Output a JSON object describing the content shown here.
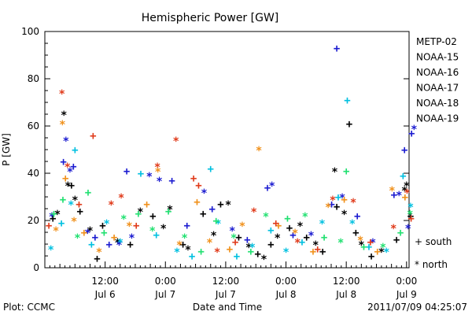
{
  "footer": {
    "plot_credit": "Plot: CCMC",
    "timestamp": "2011/07/09 04:25:07"
  },
  "chart_data": {
    "type": "scatter",
    "title": "Hemispheric Power [GW]",
    "xlabel": "Date and Time",
    "ylabel": "P [GW]",
    "ylim": [
      0,
      100
    ],
    "yticks": [
      0,
      20,
      40,
      60,
      80,
      100
    ],
    "xlim": [
      0,
      72.5
    ],
    "xticks": [
      {
        "x": 12,
        "top": "12:00",
        "bottom": "Jul 6"
      },
      {
        "x": 24,
        "top": "0:00",
        "bottom": "Jul 7"
      },
      {
        "x": 36,
        "top": "12:00",
        "bottom": "Jul 7"
      },
      {
        "x": 48,
        "top": "0:00",
        "bottom": "Jul 8"
      },
      {
        "x": 60,
        "top": "12:00",
        "bottom": "Jul 8"
      },
      {
        "x": 72,
        "top": "0:00",
        "bottom": "Jul 9"
      }
    ],
    "marker_legend": [
      {
        "symbol": "+",
        "label": "south"
      },
      {
        "symbol": "*",
        "label": "north"
      }
    ],
    "series": [
      {
        "name": "METP-02",
        "color": "#000000",
        "points": [
          {
            "x": 1.6,
            "y": 21,
            "m": "+"
          },
          {
            "x": 2.5,
            "y": 24,
            "m": "*"
          },
          {
            "x": 3.8,
            "y": 66,
            "m": "*"
          },
          {
            "x": 4.6,
            "y": 36,
            "m": "*"
          },
          {
            "x": 5.3,
            "y": 35,
            "m": "+"
          },
          {
            "x": 6.0,
            "y": 30,
            "m": "*"
          },
          {
            "x": 7.0,
            "y": 24,
            "m": "+"
          },
          {
            "x": 9.0,
            "y": 17,
            "m": "*"
          },
          {
            "x": 10.4,
            "y": 4,
            "m": "+"
          },
          {
            "x": 11.5,
            "y": 18,
            "m": "+"
          },
          {
            "x": 14.5,
            "y": 12,
            "m": "*"
          },
          {
            "x": 17.0,
            "y": 10,
            "m": "+"
          },
          {
            "x": 19.0,
            "y": 25,
            "m": "*"
          },
          {
            "x": 21.5,
            "y": 22,
            "m": "+"
          },
          {
            "x": 23.6,
            "y": 18,
            "m": "*"
          },
          {
            "x": 24.9,
            "y": 26,
            "m": "*"
          },
          {
            "x": 27.5,
            "y": 10,
            "m": "+"
          },
          {
            "x": 28.5,
            "y": 9,
            "m": "*"
          },
          {
            "x": 31.5,
            "y": 23,
            "m": "+"
          },
          {
            "x": 33.6,
            "y": 15,
            "m": "*"
          },
          {
            "x": 35.0,
            "y": 27,
            "m": "+"
          },
          {
            "x": 36.5,
            "y": 28,
            "m": "*"
          },
          {
            "x": 38.6,
            "y": 13,
            "m": "+"
          },
          {
            "x": 40.6,
            "y": 10,
            "m": "*"
          },
          {
            "x": 42.4,
            "y": 6,
            "m": "+"
          },
          {
            "x": 43.6,
            "y": 5,
            "m": "*"
          },
          {
            "x": 45.0,
            "y": 10,
            "m": "+"
          },
          {
            "x": 46.3,
            "y": 14,
            "m": "*"
          },
          {
            "x": 48.7,
            "y": 17,
            "m": "+"
          },
          {
            "x": 50.8,
            "y": 19,
            "m": "*"
          },
          {
            "x": 52.1,
            "y": 13,
            "m": "+"
          },
          {
            "x": 53.9,
            "y": 11,
            "m": "*"
          },
          {
            "x": 55.3,
            "y": 7,
            "m": "+"
          },
          {
            "x": 57.7,
            "y": 42,
            "m": "*"
          },
          {
            "x": 58.1,
            "y": 26,
            "m": "+"
          },
          {
            "x": 59.6,
            "y": 24,
            "m": "*"
          },
          {
            "x": 60.6,
            "y": 61,
            "m": "+"
          },
          {
            "x": 61.9,
            "y": 15,
            "m": "+"
          },
          {
            "x": 63.0,
            "y": 11,
            "m": "*"
          },
          {
            "x": 65.0,
            "y": 5,
            "m": "+"
          },
          {
            "x": 67.0,
            "y": 8,
            "m": "*"
          },
          {
            "x": 70.0,
            "y": 12,
            "m": "+"
          },
          {
            "x": 71.6,
            "y": 34,
            "m": "*"
          },
          {
            "x": 72.0,
            "y": 36,
            "m": "*"
          },
          {
            "x": 72.8,
            "y": 22,
            "m": "+"
          }
        ]
      },
      {
        "name": "NOAA-15",
        "color": "#1a1ad0",
        "points": [
          {
            "x": 1.4,
            "y": 23,
            "m": "*"
          },
          {
            "x": 3.7,
            "y": 45,
            "m": "+"
          },
          {
            "x": 4.2,
            "y": 55,
            "m": "*"
          },
          {
            "x": 5.0,
            "y": 42,
            "m": "*"
          },
          {
            "x": 5.7,
            "y": 43,
            "m": "+"
          },
          {
            "x": 8.5,
            "y": 16,
            "m": "*"
          },
          {
            "x": 10.0,
            "y": 13,
            "m": "+"
          },
          {
            "x": 12.8,
            "y": 10,
            "m": "+"
          },
          {
            "x": 14.8,
            "y": 11,
            "m": "*"
          },
          {
            "x": 16.3,
            "y": 41,
            "m": "+"
          },
          {
            "x": 17.3,
            "y": 14,
            "m": "*"
          },
          {
            "x": 20.8,
            "y": 40,
            "m": "*"
          },
          {
            "x": 22.8,
            "y": 38,
            "m": "*"
          },
          {
            "x": 25.3,
            "y": 37,
            "m": "+"
          },
          {
            "x": 28.3,
            "y": 18,
            "m": "+"
          },
          {
            "x": 31.7,
            "y": 33,
            "m": "*"
          },
          {
            "x": 33.3,
            "y": 25,
            "m": "+"
          },
          {
            "x": 37.3,
            "y": 17,
            "m": "*"
          },
          {
            "x": 40.3,
            "y": 12,
            "m": "+"
          },
          {
            "x": 44.3,
            "y": 34,
            "m": "+"
          },
          {
            "x": 45.2,
            "y": 36,
            "m": "*"
          },
          {
            "x": 49.4,
            "y": 14,
            "m": "+"
          },
          {
            "x": 53.0,
            "y": 15,
            "m": "*"
          },
          {
            "x": 57.1,
            "y": 27,
            "m": "+"
          },
          {
            "x": 58.1,
            "y": 93,
            "m": "+"
          },
          {
            "x": 59.2,
            "y": 31,
            "m": "*"
          },
          {
            "x": 62.2,
            "y": 22,
            "m": "+"
          },
          {
            "x": 65.3,
            "y": 12,
            "m": "*"
          },
          {
            "x": 69.5,
            "y": 31,
            "m": "+"
          },
          {
            "x": 70.5,
            "y": 32,
            "m": "*"
          },
          {
            "x": 71.6,
            "y": 50,
            "m": "+"
          },
          {
            "x": 72.3,
            "y": 18,
            "m": "*"
          },
          {
            "x": 73.0,
            "y": 57,
            "m": "+"
          },
          {
            "x": 73.5,
            "y": 60,
            "m": "*"
          }
        ]
      },
      {
        "name": "NOAA-16",
        "color": "#00c0e0",
        "points": [
          {
            "x": 1.2,
            "y": 9,
            "m": "*"
          },
          {
            "x": 3.3,
            "y": 19,
            "m": "+"
          },
          {
            "x": 5.2,
            "y": 28,
            "m": "*"
          },
          {
            "x": 6.0,
            "y": 50,
            "m": "+"
          },
          {
            "x": 9.3,
            "y": 10,
            "m": "+"
          },
          {
            "x": 12.3,
            "y": 20,
            "m": "*"
          },
          {
            "x": 15.0,
            "y": 12,
            "m": "*"
          },
          {
            "x": 19.1,
            "y": 40,
            "m": "+"
          },
          {
            "x": 22.2,
            "y": 14,
            "m": "+"
          },
          {
            "x": 26.3,
            "y": 8,
            "m": "*"
          },
          {
            "x": 29.3,
            "y": 5,
            "m": "+"
          },
          {
            "x": 33.0,
            "y": 42,
            "m": "+"
          },
          {
            "x": 34.5,
            "y": 20,
            "m": "*"
          },
          {
            "x": 38.2,
            "y": 5,
            "m": "+"
          },
          {
            "x": 41.3,
            "y": 10,
            "m": "*"
          },
          {
            "x": 45.0,
            "y": 16,
            "m": "+"
          },
          {
            "x": 48.0,
            "y": 8,
            "m": "*"
          },
          {
            "x": 51.2,
            "y": 11,
            "m": "+"
          },
          {
            "x": 55.2,
            "y": 20,
            "m": "*"
          },
          {
            "x": 58.4,
            "y": 30,
            "m": "+"
          },
          {
            "x": 60.2,
            "y": 71,
            "m": "+"
          },
          {
            "x": 61.2,
            "y": 20,
            "m": "*"
          },
          {
            "x": 64.5,
            "y": 9,
            "m": "+"
          },
          {
            "x": 68.0,
            "y": 8,
            "m": "*"
          },
          {
            "x": 71.3,
            "y": 39,
            "m": "+"
          },
          {
            "x": 72.8,
            "y": 27,
            "m": "*"
          }
        ]
      },
      {
        "name": "NOAA-17",
        "color": "#20e070",
        "points": [
          {
            "x": 1.8,
            "y": 23,
            "m": "+"
          },
          {
            "x": 3.6,
            "y": 29,
            "m": "+"
          },
          {
            "x": 6.5,
            "y": 14,
            "m": "*"
          },
          {
            "x": 8.6,
            "y": 32,
            "m": "+"
          },
          {
            "x": 11.8,
            "y": 15,
            "m": "+"
          },
          {
            "x": 15.7,
            "y": 22,
            "m": "*"
          },
          {
            "x": 18.6,
            "y": 23,
            "m": "+"
          },
          {
            "x": 21.4,
            "y": 17,
            "m": "*"
          },
          {
            "x": 24.6,
            "y": 24,
            "m": "+"
          },
          {
            "x": 27.8,
            "y": 14,
            "m": "*"
          },
          {
            "x": 31.1,
            "y": 7,
            "m": "+"
          },
          {
            "x": 34.1,
            "y": 20,
            "m": "+"
          },
          {
            "x": 37.6,
            "y": 14,
            "m": "*"
          },
          {
            "x": 41.0,
            "y": 7,
            "m": "+"
          },
          {
            "x": 44.0,
            "y": 23,
            "m": "*"
          },
          {
            "x": 48.3,
            "y": 21,
            "m": "+"
          },
          {
            "x": 51.8,
            "y": 23,
            "m": "*"
          },
          {
            "x": 55.6,
            "y": 13,
            "m": "+"
          },
          {
            "x": 58.9,
            "y": 12,
            "m": "*"
          },
          {
            "x": 60.0,
            "y": 41,
            "m": "+"
          },
          {
            "x": 63.5,
            "y": 9,
            "m": "+"
          },
          {
            "x": 67.3,
            "y": 10,
            "m": "*"
          },
          {
            "x": 70.8,
            "y": 15,
            "m": "+"
          },
          {
            "x": 72.7,
            "y": 24,
            "m": "*"
          }
        ]
      },
      {
        "name": "NOAA-18",
        "color": "#f0901a",
        "points": [
          {
            "x": 2.2,
            "y": 17,
            "m": "*"
          },
          {
            "x": 3.5,
            "y": 62,
            "m": "*"
          },
          {
            "x": 4.1,
            "y": 38,
            "m": "+"
          },
          {
            "x": 5.8,
            "y": 21,
            "m": "*"
          },
          {
            "x": 7.8,
            "y": 15,
            "m": "+"
          },
          {
            "x": 10.8,
            "y": 8,
            "m": "*"
          },
          {
            "x": 13.8,
            "y": 13,
            "m": "+"
          },
          {
            "x": 16.8,
            "y": 19,
            "m": "*"
          },
          {
            "x": 20.3,
            "y": 27,
            "m": "+"
          },
          {
            "x": 22.5,
            "y": 42,
            "m": "*"
          },
          {
            "x": 26.8,
            "y": 11,
            "m": "*"
          },
          {
            "x": 30.3,
            "y": 28,
            "m": "+"
          },
          {
            "x": 32.8,
            "y": 12,
            "m": "*"
          },
          {
            "x": 36.8,
            "y": 8,
            "m": "+"
          },
          {
            "x": 39.3,
            "y": 19,
            "m": "*"
          },
          {
            "x": 42.6,
            "y": 51,
            "m": "*"
          },
          {
            "x": 46.5,
            "y": 18,
            "m": "+"
          },
          {
            "x": 49.8,
            "y": 16,
            "m": "*"
          },
          {
            "x": 53.4,
            "y": 7,
            "m": "+"
          },
          {
            "x": 56.4,
            "y": 27,
            "m": "*"
          },
          {
            "x": 59.6,
            "y": 29,
            "m": "+"
          },
          {
            "x": 62.8,
            "y": 13,
            "m": "*"
          },
          {
            "x": 66.2,
            "y": 7,
            "m": "+"
          },
          {
            "x": 69.1,
            "y": 34,
            "m": "*"
          },
          {
            "x": 71.7,
            "y": 30,
            "m": "+"
          }
        ]
      },
      {
        "name": "NOAA-19",
        "color": "#e03a1a",
        "points": [
          {
            "x": 0.8,
            "y": 18,
            "m": "+"
          },
          {
            "x": 3.4,
            "y": 75,
            "m": "*"
          },
          {
            "x": 4.5,
            "y": 44,
            "m": "*"
          },
          {
            "x": 6.8,
            "y": 27,
            "m": "+"
          },
          {
            "x": 9.6,
            "y": 56,
            "m": "+"
          },
          {
            "x": 13.2,
            "y": 28,
            "m": "*"
          },
          {
            "x": 15.2,
            "y": 31,
            "m": "*"
          },
          {
            "x": 18.2,
            "y": 18,
            "m": "+"
          },
          {
            "x": 22.4,
            "y": 44,
            "m": "*"
          },
          {
            "x": 26.1,
            "y": 55,
            "m": "*"
          },
          {
            "x": 29.6,
            "y": 38,
            "m": "+"
          },
          {
            "x": 30.6,
            "y": 35,
            "m": "+"
          },
          {
            "x": 34.3,
            "y": 8,
            "m": "*"
          },
          {
            "x": 37.9,
            "y": 11,
            "m": "+"
          },
          {
            "x": 41.6,
            "y": 25,
            "m": "*"
          },
          {
            "x": 46.0,
            "y": 19,
            "m": "+"
          },
          {
            "x": 50.3,
            "y": 12,
            "m": "*"
          },
          {
            "x": 54.3,
            "y": 8,
            "m": "+"
          },
          {
            "x": 57.3,
            "y": 30,
            "m": "*"
          },
          {
            "x": 61.4,
            "y": 29,
            "m": "*"
          },
          {
            "x": 64.8,
            "y": 11,
            "m": "+"
          },
          {
            "x": 69.4,
            "y": 18,
            "m": "*"
          },
          {
            "x": 72.1,
            "y": 33,
            "m": "*"
          },
          {
            "x": 72.9,
            "y": 21,
            "m": "+"
          }
        ]
      }
    ]
  }
}
